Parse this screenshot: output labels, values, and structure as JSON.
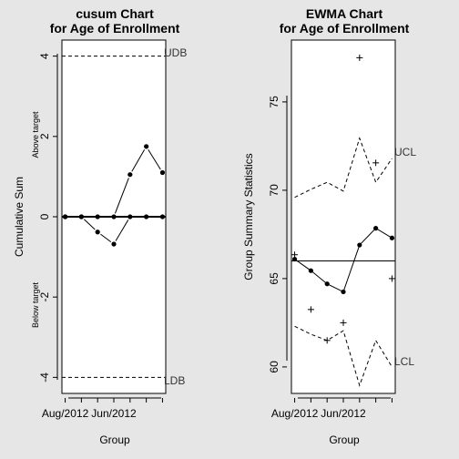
{
  "chart_data": [
    {
      "type": "line",
      "title": "cusum Chart\nfor Age of Enrollment",
      "xlabel": "Group",
      "ylabel": "Cumulative Sum",
      "above_target_label": "Above target",
      "below_target_label": "Below target",
      "ylim": [
        -4.4,
        4.4
      ],
      "yticks": [
        -4,
        -2,
        0,
        2,
        4
      ],
      "x_tick_labels": [
        "Aug/2012",
        "Jun/2012"
      ],
      "x_tick_positions": [
        1,
        4
      ],
      "xlim": [
        0.8,
        7.2
      ],
      "decision_interval": 4,
      "upper_decision_label": "UDB",
      "lower_decision_label": "LDB",
      "target_line": 0,
      "series": [
        {
          "name": "",
          "x": [
            1,
            2,
            3,
            4,
            5,
            6,
            7
          ],
          "values": [
            0,
            0,
            0,
            0,
            1.05,
            1.75,
            1.1
          ]
        },
        {
          "name": "",
          "x": [
            1,
            2,
            3,
            4,
            5,
            6,
            7
          ],
          "values": [
            0,
            0,
            -0.38,
            -0.68,
            0,
            0,
            0
          ]
        }
      ],
      "legend": "none",
      "grid": false
    },
    {
      "type": "line",
      "title": "EWMA Chart\nfor Age of Enrollment",
      "xlabel": "Group",
      "ylabel": "Group Summary Statistics",
      "ylim": [
        58.5,
        78.5
      ],
      "yticks": [
        60,
        65,
        70,
        75
      ],
      "x_tick_labels": [
        "Aug/2012",
        "Jun/2012"
      ],
      "x_tick_positions": [
        1,
        4
      ],
      "xlim": [
        0.8,
        7.2
      ],
      "center_line": 66.0,
      "ucl_label": "UCL",
      "lcl_label": "LCL",
      "ucl": [
        69.6,
        70.05,
        70.45,
        69.95,
        72.95,
        70.45,
        71.8
      ],
      "lcl": [
        62.3,
        61.85,
        61.5,
        62.05,
        58.95,
        61.5,
        60.0
      ],
      "ewma": [
        66.1,
        65.45,
        64.7,
        64.25,
        66.9,
        67.85,
        67.3
      ],
      "group_stats": [
        66.35,
        63.25,
        61.5,
        62.5,
        77.5,
        71.55,
        65.0
      ],
      "legend": "none",
      "grid": false
    }
  ]
}
